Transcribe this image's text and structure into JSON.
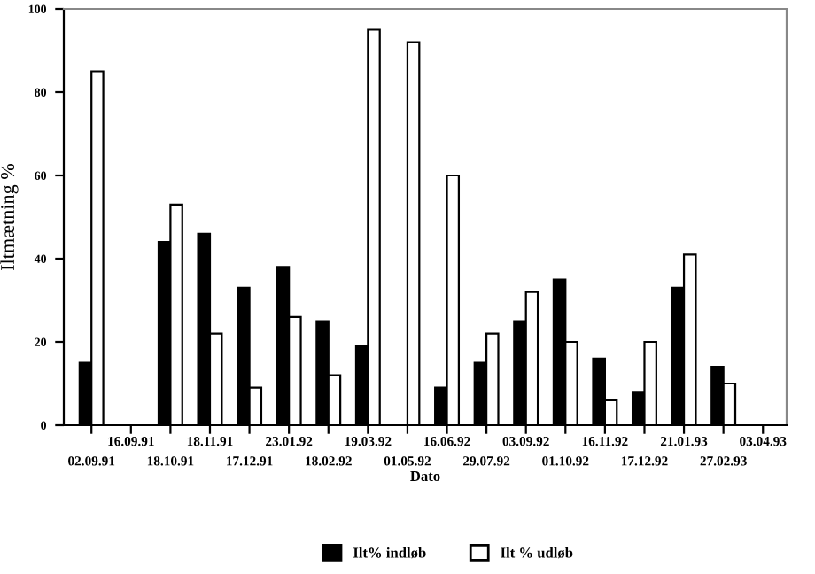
{
  "chart_data": {
    "type": "bar",
    "xlabel": "Dato",
    "ylabel": "Iltmætning %",
    "categories": [
      "02.09.91",
      "16.09.91",
      "18.10.91",
      "18.11.91",
      "17.12.91",
      "23.01.92",
      "18.02.92",
      "19.03.92",
      "01.05.92",
      "16.06.92",
      "29.07.92",
      "03.09.92",
      "01.10.92",
      "16.11.92",
      "17.12.92",
      "21.01.93",
      "27.02.93",
      "03.04.93"
    ],
    "series": [
      {
        "name": "Ilt% indløb",
        "color": "#000000",
        "values": [
          15,
          null,
          44,
          46,
          33,
          38,
          25,
          19,
          null,
          9,
          15,
          25,
          35,
          16,
          8,
          33,
          14,
          null
        ]
      },
      {
        "name": "Ilt % udløb",
        "color": "#ffffff",
        "values": [
          85,
          null,
          53,
          22,
          9,
          26,
          12,
          95,
          92,
          60,
          22,
          32,
          20,
          6,
          20,
          41,
          10,
          null
        ]
      }
    ],
    "ylim": [
      0,
      100
    ],
    "yticks": [
      0,
      20,
      40,
      60,
      80,
      100
    ],
    "grid": false,
    "legend": "bottom"
  }
}
